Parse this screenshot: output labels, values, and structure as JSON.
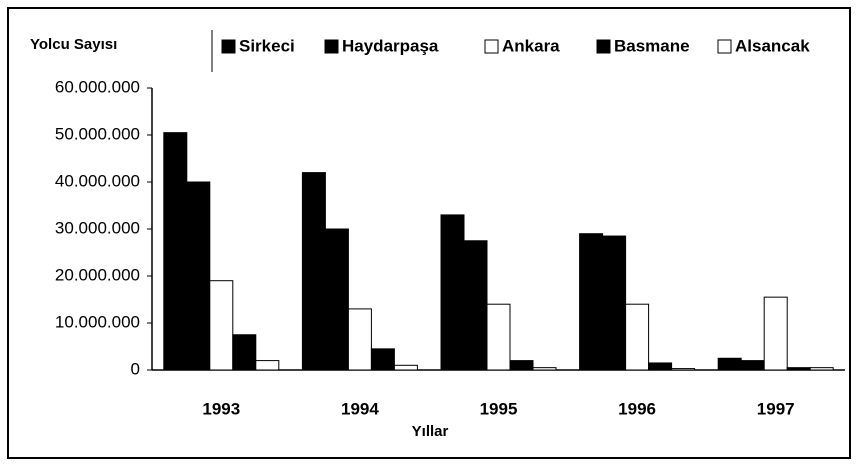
{
  "chart_data": {
    "type": "bar",
    "y_label": "Yolcu Sayısı",
    "x_label": "Yıllar",
    "categories": [
      "1993",
      "1994",
      "1995",
      "1996",
      "1997"
    ],
    "series": [
      {
        "name": "Sirkeci",
        "color": "#000000",
        "values": [
          50500000,
          42000000,
          33000000,
          29000000,
          2500000
        ]
      },
      {
        "name": "Haydarpaşa",
        "color": "#000000",
        "values": [
          40000000,
          30000000,
          27500000,
          28500000,
          2000000
        ]
      },
      {
        "name": "Ankara",
        "color": "#ffffff",
        "values": [
          19000000,
          13000000,
          14000000,
          14000000,
          15500000
        ]
      },
      {
        "name": "Basmane",
        "color": "#000000",
        "values": [
          7500000,
          4500000,
          2000000,
          1500000,
          500000
        ]
      },
      {
        "name": "Alsancak",
        "color": "#ffffff",
        "values": [
          2000000,
          1000000,
          500000,
          300000,
          500000
        ]
      }
    ],
    "ylim": [
      0,
      60000000
    ],
    "yticks": [
      0,
      {
        "value": 10000000,
        "label": "10.000.000"
      },
      {
        "value": 20000000,
        "label": "20.000.000"
      },
      {
        "value": 30000000,
        "label": "30.000.000"
      },
      {
        "value": 40000000,
        "label": "40.000.000"
      },
      {
        "value": 50000000,
        "label": "50.000.000"
      },
      {
        "value": 60000000,
        "label": "60.000.000"
      }
    ],
    "grid": false,
    "legend": "top"
  }
}
